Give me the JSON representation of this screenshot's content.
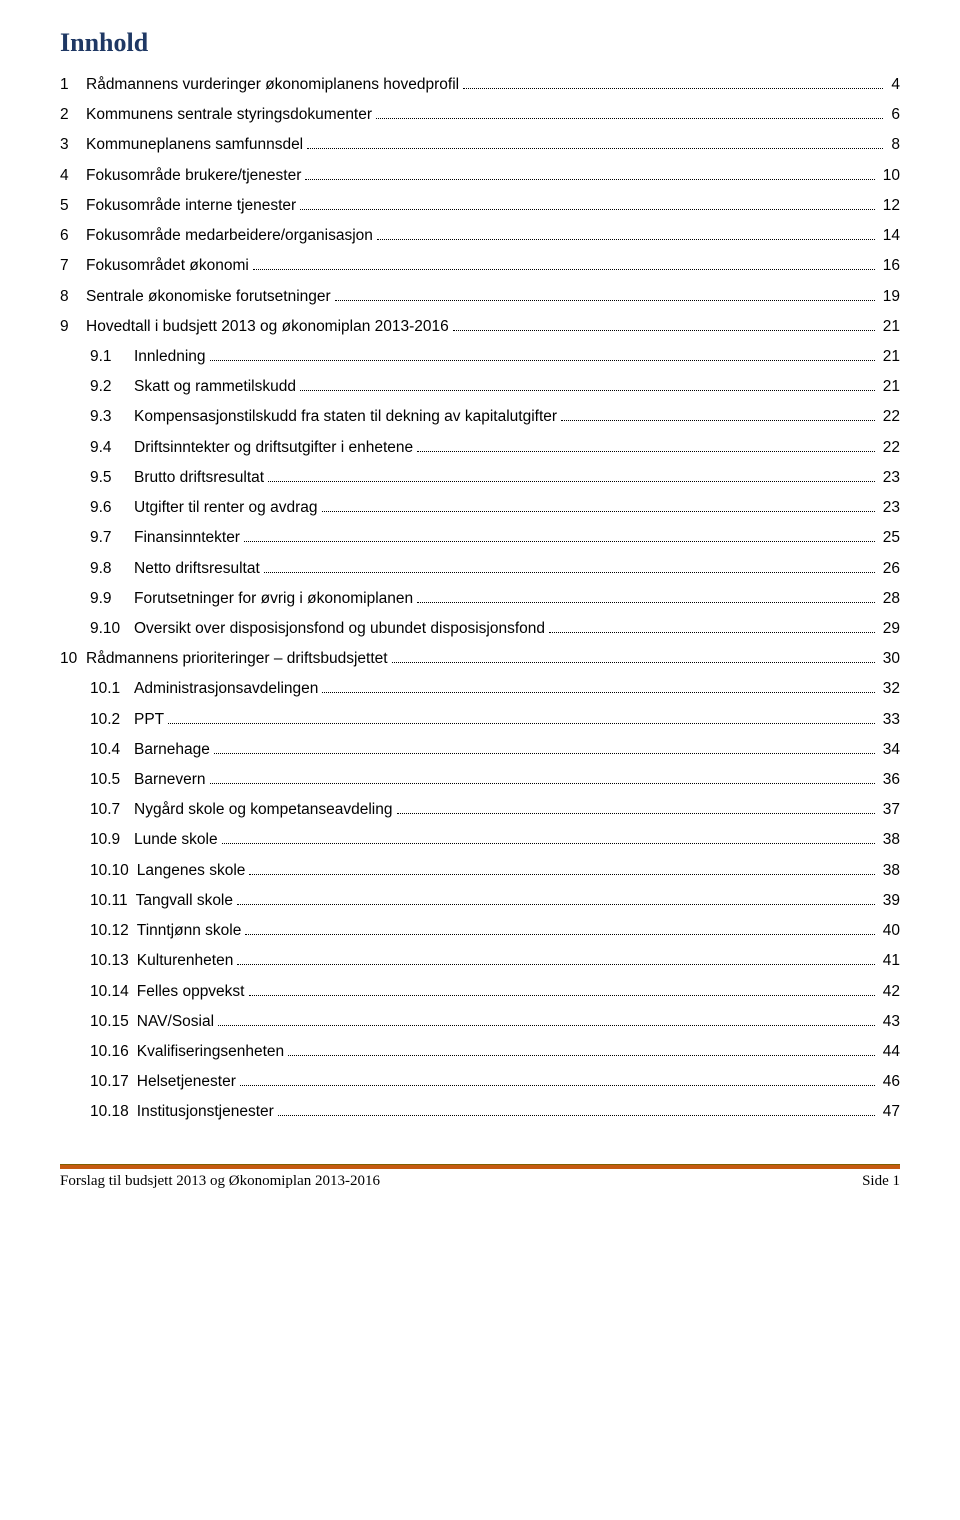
{
  "title": "Innhold",
  "toc": [
    {
      "level": 1,
      "num": "1",
      "text": "Rådmannens vurderinger økonomiplanens hovedprofil",
      "page": "4"
    },
    {
      "level": 1,
      "num": "2",
      "text": "Kommunens sentrale styringsdokumenter",
      "page": "6"
    },
    {
      "level": 1,
      "num": "3",
      "text": "Kommuneplanens samfunnsdel",
      "page": "8"
    },
    {
      "level": 1,
      "num": "4",
      "text": "Fokusområde brukere/tjenester",
      "page": "10"
    },
    {
      "level": 1,
      "num": "5",
      "text": "Fokusområde interne tjenester",
      "page": "12"
    },
    {
      "level": 1,
      "num": "6",
      "text": "Fokusområde medarbeidere/organisasjon",
      "page": "14"
    },
    {
      "level": 1,
      "num": "7",
      "text": "Fokusområdet økonomi",
      "page": "16"
    },
    {
      "level": 1,
      "num": "8",
      "text": "Sentrale økonomiske forutsetninger",
      "page": "19"
    },
    {
      "level": 1,
      "num": "9",
      "text": "Hovedtall i budsjett 2013 og økonomiplan 2013-2016",
      "page": "21"
    },
    {
      "level": 2,
      "num": "9.1",
      "text": "Innledning",
      "page": "21"
    },
    {
      "level": 2,
      "num": "9.2",
      "text": "Skatt og rammetilskudd",
      "page": "21"
    },
    {
      "level": 2,
      "num": "9.3",
      "text": "Kompensasjonstilskudd fra staten til dekning av kapitalutgifter",
      "page": "22"
    },
    {
      "level": 2,
      "num": "9.4",
      "text": "Driftsinntekter og driftsutgifter i enhetene",
      "page": "22"
    },
    {
      "level": 2,
      "num": "9.5",
      "text": "Brutto driftsresultat",
      "page": "23"
    },
    {
      "level": 2,
      "num": "9.6",
      "text": "Utgifter til renter og avdrag",
      "page": "23"
    },
    {
      "level": 2,
      "num": "9.7",
      "text": "Finansinntekter",
      "page": "25"
    },
    {
      "level": 2,
      "num": "9.8",
      "text": "Netto driftsresultat",
      "page": "26"
    },
    {
      "level": 2,
      "num": "9.9",
      "text": "Forutsetninger for øvrig i økonomiplanen",
      "page": "28"
    },
    {
      "level": 2,
      "num": "9.10",
      "text": "Oversikt over disposisjonsfond og ubundet disposisjonsfond",
      "page": "29"
    },
    {
      "level": 1,
      "num": "10",
      "text": "Rådmannens prioriteringer – driftsbudsjettet",
      "page": "30"
    },
    {
      "level": 2,
      "num": "10.1",
      "text": "Administrasjonsavdelingen",
      "page": "32"
    },
    {
      "level": 2,
      "num": "10.2",
      "text": "PPT",
      "page": "33"
    },
    {
      "level": 2,
      "num": "10.4",
      "text": "Barnehage",
      "page": "34"
    },
    {
      "level": 2,
      "num": "10.5",
      "text": "Barnevern",
      "page": "36"
    },
    {
      "level": 2,
      "num": "10.7",
      "text": "Nygård skole og kompetanseavdeling",
      "page": "37"
    },
    {
      "level": 2,
      "num": "10.9",
      "text": "Lunde skole",
      "page": "38"
    },
    {
      "level": 2,
      "num": "10.10",
      "text": "Langenes skole",
      "page": "38"
    },
    {
      "level": 2,
      "num": "10.11",
      "text": "Tangvall skole",
      "page": "39"
    },
    {
      "level": 2,
      "num": "10.12",
      "text": "Tinntjønn skole",
      "page": "40"
    },
    {
      "level": 2,
      "num": "10.13",
      "text": "Kulturenheten",
      "page": "41"
    },
    {
      "level": 2,
      "num": "10.14",
      "text": "Felles oppvekst",
      "page": "42"
    },
    {
      "level": 2,
      "num": "10.15",
      "text": "NAV/Sosial",
      "page": "43"
    },
    {
      "level": 2,
      "num": "10.16",
      "text": "Kvalifiseringsenheten",
      "page": "44"
    },
    {
      "level": 2,
      "num": "10.17",
      "text": "Helsetjenester",
      "page": "46"
    },
    {
      "level": 2,
      "num": "10.18",
      "text": "Institusjonstjenester",
      "page": "47"
    }
  ],
  "footer": {
    "left": "Forslag til budsjett 2013 og Økonomiplan 2013-2016",
    "right": "Side 1"
  },
  "colors": {
    "title_color": "#1F3864",
    "bar_color": "#C55A11",
    "text_color": "#000000",
    "background": "#ffffff"
  }
}
